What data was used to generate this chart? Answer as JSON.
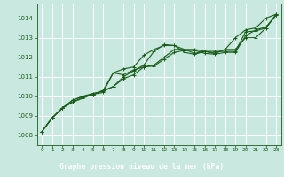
{
  "title": "Graphe pression niveau de la mer (hPa)",
  "bg_color": "#c8e8e0",
  "plot_bg_color": "#c8e8e0",
  "grid_color": "#ffffff",
  "line_color": "#1a5c1a",
  "title_bg_color": "#2a6e2a",
  "title_text_color": "#ffffff",
  "xlim": [
    -0.5,
    23.5
  ],
  "ylim": [
    1007.5,
    1014.75
  ],
  "xticks": [
    0,
    1,
    2,
    3,
    4,
    5,
    6,
    7,
    8,
    9,
    10,
    11,
    12,
    13,
    14,
    15,
    16,
    17,
    18,
    19,
    20,
    21,
    22,
    23
  ],
  "yticks": [
    1008,
    1009,
    1010,
    1011,
    1012,
    1013,
    1014
  ],
  "series": [
    [
      1008.2,
      1008.9,
      1009.4,
      1009.7,
      1009.9,
      1010.1,
      1010.3,
      1010.5,
      1011.0,
      1011.3,
      1011.6,
      1012.3,
      1012.65,
      1012.6,
      1012.25,
      1012.15,
      1012.3,
      1012.2,
      1012.4,
      1013.0,
      1013.4,
      1013.5,
      1014.0,
      1014.2
    ],
    [
      1008.2,
      1008.9,
      1009.4,
      1009.8,
      1010.0,
      1010.1,
      1010.2,
      1011.2,
      1011.4,
      1011.5,
      1012.1,
      1012.4,
      1012.6,
      1012.6,
      1012.4,
      1012.2,
      1012.3,
      1012.2,
      1012.4,
      1012.4,
      1013.0,
      1013.0,
      1013.5,
      1014.15
    ],
    [
      1008.2,
      1008.9,
      1009.4,
      1009.8,
      1010.0,
      1010.15,
      1010.25,
      1010.5,
      1010.9,
      1011.1,
      1011.5,
      1011.6,
      1012.0,
      1012.4,
      1012.4,
      1012.4,
      1012.3,
      1012.3,
      1012.3,
      1012.3,
      1013.3,
      1013.35,
      1013.5,
      1014.2
    ],
    [
      1008.2,
      1008.9,
      1009.4,
      1009.7,
      1009.95,
      1010.1,
      1010.3,
      1011.2,
      1011.1,
      1011.35,
      1011.5,
      1011.55,
      1011.9,
      1012.25,
      1012.35,
      1012.35,
      1012.2,
      1012.15,
      1012.25,
      1012.25,
      1013.1,
      1013.4,
      1013.55,
      1014.15
    ]
  ]
}
